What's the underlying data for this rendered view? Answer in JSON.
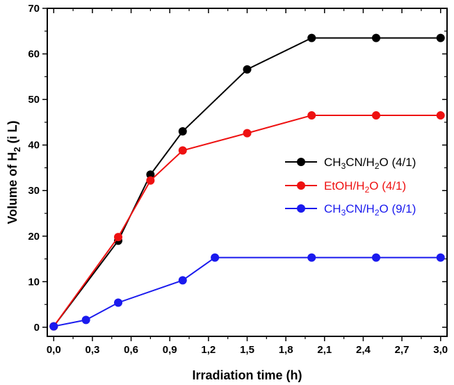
{
  "chart_data": {
    "type": "line",
    "xlabel": "Irradiation time (h)",
    "ylabel_parts": [
      "Volume of H",
      "2",
      " (i L)"
    ],
    "xlim": [
      -0.05,
      3.05
    ],
    "ylim": [
      -2,
      70
    ],
    "xticks": [
      0.0,
      0.3,
      0.6,
      0.9,
      1.2,
      1.5,
      1.8,
      2.1,
      2.4,
      2.7,
      3.0
    ],
    "xtick_labels": [
      "0,0",
      "0,3",
      "0,6",
      "0,9",
      "1,2",
      "1,5",
      "1,8",
      "2,1",
      "2,4",
      "2,7",
      "3,0"
    ],
    "yticks": [
      0,
      10,
      20,
      30,
      40,
      50,
      60,
      70
    ],
    "ytick_labels": [
      "0",
      "10",
      "20",
      "30",
      "40",
      "50",
      "60",
      "70"
    ],
    "legend_position": "right",
    "series": [
      {
        "name_parts": [
          [
            "CH",
            ""
          ],
          [
            "3",
            "sub"
          ],
          [
            "CN/H",
            ""
          ],
          [
            "2",
            "sub"
          ],
          [
            "O (4/1)",
            ""
          ]
        ],
        "color": "#000000",
        "x": [
          0.0,
          0.5,
          0.75,
          1.0,
          1.5,
          2.0,
          2.5,
          3.0
        ],
        "y": [
          0.2,
          19.0,
          33.5,
          43.0,
          56.6,
          63.5,
          63.5,
          63.5
        ]
      },
      {
        "name_parts": [
          [
            "EtOH/H",
            ""
          ],
          [
            "2",
            "sub"
          ],
          [
            "O (4/1)",
            ""
          ]
        ],
        "color": "#ee1111",
        "x": [
          0.0,
          0.5,
          0.75,
          1.0,
          1.5,
          2.0,
          2.5,
          3.0
        ],
        "y": [
          0.2,
          19.8,
          32.2,
          38.8,
          42.6,
          46.5,
          46.5,
          46.5
        ]
      },
      {
        "name_parts": [
          [
            "CH",
            ""
          ],
          [
            "3",
            "sub"
          ],
          [
            "CN/H",
            ""
          ],
          [
            "2",
            "sub"
          ],
          [
            "O (9/1)",
            ""
          ]
        ],
        "color": "#1a1aee",
        "x": [
          0.0,
          0.25,
          0.5,
          1.0,
          1.25,
          2.0,
          2.5,
          3.0
        ],
        "y": [
          0.2,
          1.6,
          5.4,
          10.3,
          15.3,
          15.3,
          15.3,
          15.3
        ]
      }
    ]
  }
}
